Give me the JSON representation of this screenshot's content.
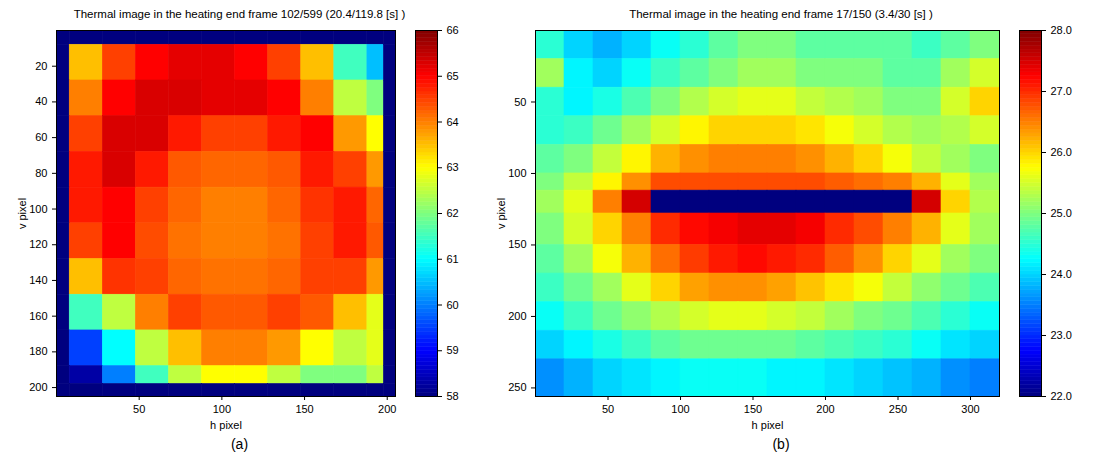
{
  "chart_data": [
    {
      "type": "heatmap",
      "title": "Thermal image in the heating end frame 102/599 (20.4/119.8 [s] )",
      "x_label": "h pixel",
      "y_label": "v pixel",
      "caption": "(a)",
      "xlim": [
        0,
        205
      ],
      "xticks": [
        50,
        100,
        150,
        200
      ],
      "ylim": [
        0,
        205
      ],
      "yticks": [
        20,
        40,
        60,
        80,
        100,
        120,
        140,
        160,
        180,
        200
      ],
      "cells": {
        "h": [
          0,
          8,
          28,
          48,
          68,
          88,
          108,
          128,
          148,
          168,
          188,
          198,
          205
        ],
        "v": [
          0,
          8,
          28,
          48,
          68,
          88,
          108,
          128,
          148,
          168,
          188,
          198,
          205
        ],
        "values": [
          [
            58,
            58,
            58,
            58,
            58,
            58,
            58,
            58,
            58,
            58,
            58,
            58
          ],
          [
            58,
            63.5,
            64.5,
            65,
            65.2,
            65.2,
            65,
            64.5,
            63.5,
            61.5,
            60.5,
            58
          ],
          [
            58,
            64,
            65,
            65.3,
            65.3,
            65.2,
            65.2,
            65,
            64,
            62.5,
            62,
            58
          ],
          [
            58,
            64.5,
            65.3,
            65.3,
            64.8,
            64.5,
            64.5,
            64.8,
            65,
            63.8,
            63,
            58
          ],
          [
            58,
            64.8,
            65.3,
            64.8,
            64.3,
            64.2,
            64.2,
            64.3,
            64.8,
            64.5,
            63.8,
            58
          ],
          [
            58,
            64.8,
            65,
            64.5,
            64.2,
            64,
            64,
            64.2,
            64.6,
            64.8,
            64.2,
            58
          ],
          [
            58,
            64.5,
            65,
            64.4,
            64.1,
            64,
            64,
            64.1,
            64.5,
            64.8,
            64.3,
            58
          ],
          [
            58,
            63.5,
            64.6,
            64.5,
            64.2,
            64.1,
            64.1,
            64.2,
            64.5,
            64.5,
            63.8,
            58
          ],
          [
            58,
            61.5,
            62.5,
            64,
            64.5,
            64.3,
            64.3,
            64.5,
            64.3,
            63.5,
            62.8,
            58
          ],
          [
            58,
            59.5,
            61,
            62.5,
            63.5,
            64,
            64,
            63.8,
            63,
            62.5,
            62.8,
            58
          ],
          [
            58,
            58.3,
            60,
            61.5,
            62.5,
            63,
            63,
            62.5,
            62,
            62,
            62.5,
            58
          ],
          [
            58,
            58,
            58,
            58,
            58,
            58,
            58,
            58,
            58,
            58,
            58,
            58
          ]
        ]
      },
      "colorbar": {
        "range": [
          58,
          66
        ],
        "ticks": [
          58,
          59,
          60,
          61,
          62,
          63,
          64,
          65,
          66
        ]
      }
    },
    {
      "type": "heatmap",
      "title": "Thermal image in the heating end frame 17/150 (3.4/30 [s] )",
      "x_label": "h pixel",
      "y_label": "v pixel",
      "caption": "(b)",
      "xlim": [
        0,
        320
      ],
      "xticks": [
        50,
        100,
        150,
        200,
        250,
        300
      ],
      "ylim": [
        0,
        256
      ],
      "yticks": [
        50,
        100,
        150,
        200,
        250
      ],
      "cells": {
        "h": [
          0,
          20,
          40,
          60,
          80,
          100,
          120,
          140,
          160,
          180,
          200,
          220,
          240,
          260,
          280,
          300,
          320
        ],
        "v": [
          0,
          20,
          40,
          60,
          80,
          100,
          112,
          128,
          150,
          170,
          190,
          210,
          230,
          256
        ],
        "values": [
          [
            24.5,
            24,
            23.8,
            24,
            24.3,
            24.5,
            24.8,
            25,
            25,
            24.8,
            24.8,
            24.8,
            24.8,
            24.6,
            24.8,
            25
          ],
          [
            25.2,
            24.2,
            24,
            24.3,
            24.6,
            24.8,
            25,
            25.2,
            25.2,
            25,
            25,
            25,
            24.8,
            24.8,
            25.2,
            25.5
          ],
          [
            24.5,
            24.2,
            24.4,
            24.7,
            25,
            25.3,
            25.5,
            25.6,
            25.6,
            25.4,
            25.3,
            25.2,
            25,
            25,
            25.5,
            26
          ],
          [
            24.5,
            24.6,
            24.9,
            25.2,
            25.5,
            25.8,
            26,
            26,
            26,
            25.9,
            25.7,
            25.5,
            25.3,
            25.2,
            25.3,
            25.5
          ],
          [
            24.8,
            25,
            25.4,
            25.8,
            26.2,
            26.4,
            26.5,
            26.5,
            26.5,
            26.4,
            26.2,
            26,
            25.7,
            25.4,
            25.2,
            25
          ],
          [
            25,
            25.4,
            25.8,
            26.4,
            26.8,
            26.8,
            26.8,
            26.8,
            26.8,
            26.8,
            26.7,
            26.6,
            26.5,
            26.2,
            25.6,
            25.2
          ],
          [
            25.2,
            25.6,
            26.5,
            27.5,
            22,
            22,
            22,
            22,
            22,
            22,
            22,
            22,
            22,
            27.5,
            26,
            25.3
          ],
          [
            25,
            25.5,
            26,
            26.5,
            27,
            27.2,
            27.3,
            27.4,
            27.4,
            27.3,
            27,
            26.8,
            26.5,
            26.2,
            25.6,
            25.2
          ],
          [
            24.8,
            25.2,
            25.7,
            26.2,
            26.6,
            26.9,
            27.1,
            27.2,
            27.1,
            27,
            26.7,
            26.4,
            26,
            25.6,
            25.2,
            25
          ],
          [
            24.6,
            24.9,
            25.2,
            25.6,
            26,
            26.3,
            26.4,
            26.4,
            26.3,
            26.1,
            25.9,
            25.7,
            25.4,
            25.1,
            24.9,
            24.7
          ],
          [
            24.3,
            24.6,
            24.9,
            25.1,
            25.3,
            25.5,
            25.6,
            25.6,
            25.5,
            25.4,
            25.2,
            25,
            24.9,
            24.7,
            24.5,
            24.3
          ],
          [
            24,
            24.2,
            24.4,
            24.6,
            24.8,
            24.9,
            24.9,
            24.9,
            24.9,
            24.8,
            24.7,
            24.6,
            24.5,
            24.3,
            24.1,
            24
          ],
          [
            23.6,
            23.8,
            24,
            24.1,
            24.2,
            24.3,
            24.3,
            24.3,
            24.2,
            24.2,
            24.1,
            24,
            23.9,
            23.8,
            23.6,
            23.5
          ]
        ]
      },
      "colorbar": {
        "range": [
          22,
          28
        ],
        "ticks": [
          22,
          23,
          24,
          25,
          26,
          27,
          28
        ]
      }
    }
  ]
}
